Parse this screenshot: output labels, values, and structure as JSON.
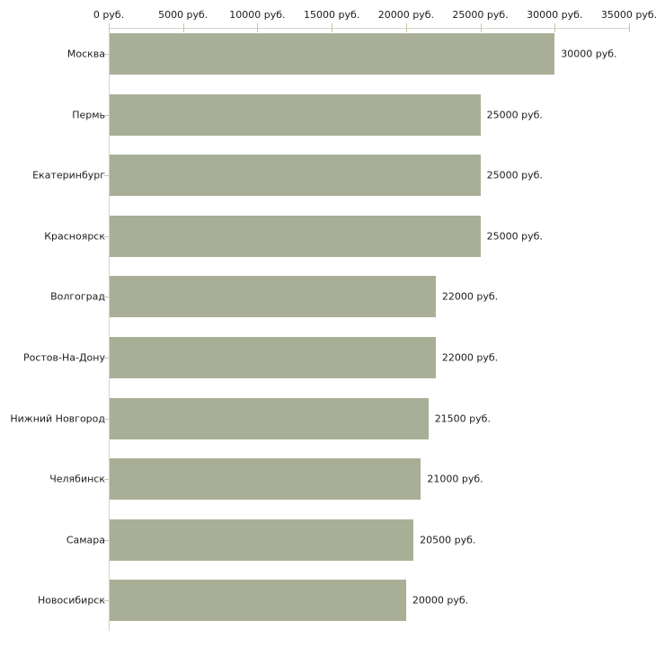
{
  "chart_data": {
    "type": "bar",
    "orientation": "horizontal",
    "title": "",
    "xlabel": "",
    "ylabel": "",
    "legend": "none",
    "grid": false,
    "categories": [
      "Москва",
      "Пермь",
      "Екатеринбург",
      "Красноярск",
      "Волгоград",
      "Ростов-На-Дону",
      "Нижний Новгород",
      "Челябинск",
      "Самара",
      "Новосибирск"
    ],
    "values": [
      30000,
      25000,
      25000,
      25000,
      22000,
      22000,
      21500,
      21000,
      20500,
      20000
    ],
    "value_labels": [
      "30000 руб.",
      "25000 руб.",
      "25000 руб.",
      "25000 руб.",
      "22000 руб.",
      "22000 руб.",
      "21500 руб.",
      "21000 руб.",
      "20500 руб.",
      "20000 руб."
    ],
    "x_ticks": [
      {
        "value": 0,
        "label": "0 руб."
      },
      {
        "value": 5000,
        "label": "5000 руб."
      },
      {
        "value": 10000,
        "label": "10000 руб."
      },
      {
        "value": 15000,
        "label": "15000 руб."
      },
      {
        "value": 20000,
        "label": "20000 руб."
      },
      {
        "value": 25000,
        "label": "25000 руб."
      },
      {
        "value": 30000,
        "label": "30000 руб."
      },
      {
        "value": 35000,
        "label": "35000 руб."
      }
    ],
    "xlim": [
      0,
      35000
    ],
    "bar_color": "#a8af96",
    "axis_color": "#d4d4cc",
    "tick_color": "#c8c8a2",
    "text_color": "#1c1c1c",
    "background": "#ffffff"
  }
}
